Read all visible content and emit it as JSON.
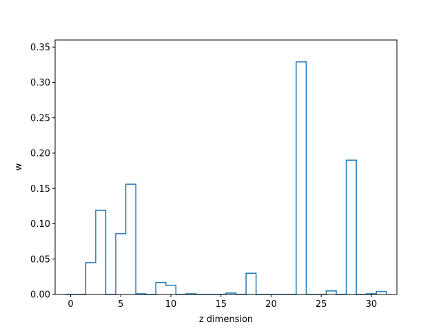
{
  "chart_data": {
    "type": "bar",
    "style": "step-outline",
    "xlabel": "z dimension",
    "ylabel": "w",
    "xlim": [
      -1.55,
      32.55
    ],
    "ylim": [
      0,
      0.36
    ],
    "xticks": [
      0,
      5,
      10,
      15,
      20,
      25,
      30
    ],
    "yticks": [
      0.0,
      0.05,
      0.1,
      0.15,
      0.2,
      0.25,
      0.3,
      0.35
    ],
    "ytick_labels": [
      "0.00",
      "0.05",
      "0.10",
      "0.15",
      "0.20",
      "0.25",
      "0.30",
      "0.35"
    ],
    "grid": false,
    "line_color": "#1f77b4",
    "x": [
      0,
      1,
      2,
      3,
      4,
      5,
      6,
      7,
      8,
      9,
      10,
      11,
      12,
      13,
      14,
      15,
      16,
      17,
      18,
      19,
      20,
      21,
      22,
      23,
      24,
      25,
      26,
      27,
      28,
      29,
      30,
      31
    ],
    "values": [
      0.0,
      0.0,
      0.045,
      0.119,
      0.0,
      0.086,
      0.156,
      0.001,
      0.0,
      0.017,
      0.013,
      0.0,
      0.001,
      0.0,
      0.0,
      0.0,
      0.002,
      0.0,
      0.03,
      0.0,
      0.0,
      0.0,
      0.0,
      0.329,
      0.0,
      0.0,
      0.005,
      0.0,
      0.19,
      0.0,
      0.001,
      0.004
    ]
  }
}
